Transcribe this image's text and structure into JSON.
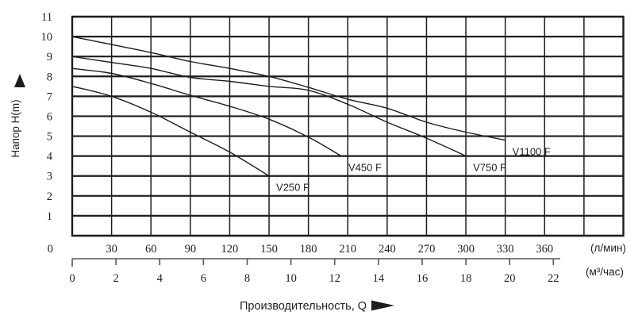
{
  "page": {
    "background": "#ffffff",
    "ink_color": "#1d1d1d",
    "grid_color": "#1d1d1d"
  },
  "y_axis": {
    "label": "Напор H(m)",
    "origin_label": "0",
    "ticks": [
      1,
      2,
      3,
      4,
      5,
      6,
      7,
      8,
      9,
      10,
      11
    ]
  },
  "x_axis_lmin": {
    "unit": "(л/мин)",
    "ticks": [
      30,
      60,
      90,
      120,
      150,
      180,
      210,
      240,
      270,
      300,
      330,
      360
    ]
  },
  "x_axis_m3h": {
    "unit": "(м³/час)",
    "ticks": [
      0,
      2,
      4,
      6,
      8,
      10,
      12,
      14,
      16,
      18,
      20,
      22
    ]
  },
  "x_title": "Производительность, Q",
  "chart_data": {
    "type": "line",
    "title": "",
    "xlabel": "Производительность, Q",
    "ylabel": "Напор H(m)",
    "x_unit_primary": "л/мин",
    "x_unit_secondary": "м³/час",
    "xlim_lmin": [
      0,
      420
    ],
    "ylim": [
      0,
      11
    ],
    "grid": true,
    "x_grid_step_lmin": 30,
    "y_grid_step_m": 1,
    "legend_position": "inline-labels",
    "series": [
      {
        "name": "V250 F",
        "points_q_lmin_h_m": [
          [
            0,
            7.5
          ],
          [
            30,
            7.0
          ],
          [
            60,
            6.2
          ],
          [
            90,
            5.2
          ],
          [
            120,
            4.2
          ],
          [
            150,
            3.0
          ]
        ]
      },
      {
        "name": "V450 F",
        "points_q_lmin_h_m": [
          [
            0,
            8.4
          ],
          [
            30,
            8.15
          ],
          [
            60,
            7.65
          ],
          [
            90,
            7.05
          ],
          [
            120,
            6.5
          ],
          [
            150,
            5.85
          ],
          [
            180,
            4.95
          ],
          [
            205,
            4.0
          ]
        ]
      },
      {
        "name": "V750 F",
        "points_q_lmin_h_m": [
          [
            0,
            9.0
          ],
          [
            30,
            8.7
          ],
          [
            60,
            8.4
          ],
          [
            90,
            7.95
          ],
          [
            120,
            7.75
          ],
          [
            150,
            7.5
          ],
          [
            180,
            7.3
          ],
          [
            210,
            6.6
          ],
          [
            240,
            5.7
          ],
          [
            270,
            4.9
          ],
          [
            300,
            4.0
          ]
        ]
      },
      {
        "name": "V1100 F",
        "points_q_lmin_h_m": [
          [
            0,
            10.0
          ],
          [
            30,
            9.6
          ],
          [
            60,
            9.2
          ],
          [
            90,
            8.75
          ],
          [
            120,
            8.4
          ],
          [
            150,
            8.0
          ],
          [
            180,
            7.45
          ],
          [
            210,
            6.85
          ],
          [
            240,
            6.4
          ],
          [
            270,
            5.7
          ],
          [
            300,
            5.2
          ],
          [
            330,
            4.8
          ]
        ]
      }
    ]
  }
}
